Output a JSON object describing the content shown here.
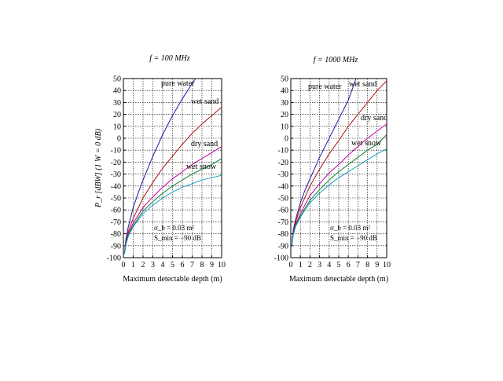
{
  "chart_data": [
    {
      "type": "line",
      "title": "f = 100 MHz",
      "xlabel": "Maximum detectable depth (m)",
      "ylabel": "P_r [dBW]   (1 W = 0 dB)",
      "xlim": [
        0,
        10
      ],
      "ylim": [
        -100,
        50
      ],
      "x_ticks": [
        0,
        1,
        2,
        3,
        4,
        5,
        6,
        7,
        8,
        9,
        10
      ],
      "y_ticks": [
        -100,
        -90,
        -80,
        -70,
        -60,
        -50,
        -40,
        -30,
        -20,
        -10,
        0,
        10,
        20,
        30,
        40,
        50
      ],
      "grid": true,
      "annotations": [
        "σ_b = 0.03 m²",
        "S_min = −90 dB"
      ],
      "series": [
        {
          "name": "pure water",
          "color": "#1a1aa0",
          "x": [
            0.1,
            0.25,
            0.5,
            1,
            1.5,
            2,
            3,
            4,
            5,
            6,
            7,
            7.8
          ],
          "y": [
            -96,
            -85,
            -74,
            -58,
            -46,
            -35,
            -15,
            3,
            19,
            33,
            46,
            55
          ]
        },
        {
          "name": "wet sand",
          "color": "#b01010",
          "x": [
            0.1,
            0.25,
            0.5,
            1,
            2,
            3,
            4,
            5,
            6,
            7,
            8,
            9,
            10
          ],
          "y": [
            -97,
            -87,
            -78,
            -67,
            -50,
            -37,
            -25,
            -15,
            -5,
            4,
            12,
            19,
            26
          ]
        },
        {
          "name": "dry sand",
          "color": "#c000a0",
          "x": [
            0.1,
            0.25,
            0.5,
            1,
            2,
            3,
            4,
            5,
            6,
            7,
            8,
            9,
            10
          ],
          "y": [
            -97,
            -88,
            -80,
            -71,
            -58,
            -49,
            -41,
            -34,
            -28,
            -22,
            -17,
            -12,
            -7
          ]
        },
        {
          "name": "wet snow",
          "color": "#108030",
          "x": [
            0.1,
            0.25,
            0.5,
            1,
            2,
            3,
            4,
            5,
            6,
            7,
            8,
            9,
            10
          ],
          "y": [
            -97,
            -89,
            -81,
            -73,
            -61,
            -53,
            -46,
            -40,
            -35,
            -30,
            -26,
            -22,
            -17
          ]
        },
        {
          "name": "",
          "color": "#10a0c0",
          "x": [
            0.1,
            0.25,
            0.5,
            1,
            2,
            3,
            4,
            5,
            6,
            7,
            8,
            9,
            10
          ],
          "y": [
            -97,
            -89,
            -82,
            -74,
            -63,
            -56,
            -50,
            -45,
            -41,
            -38,
            -35,
            -33,
            -31
          ]
        }
      ]
    },
    {
      "type": "line",
      "title": "f = 1000 MHz",
      "xlabel": "Maximum detectable depth (m)",
      "ylabel": "",
      "xlim": [
        0,
        10
      ],
      "ylim": [
        -100,
        50
      ],
      "x_ticks": [
        0,
        1,
        2,
        3,
        4,
        5,
        6,
        7,
        8,
        9,
        10
      ],
      "y_ticks": [
        -100,
        -90,
        -80,
        -70,
        -60,
        -50,
        -40,
        -30,
        -20,
        -10,
        0,
        10,
        20,
        30,
        40,
        50
      ],
      "grid": true,
      "annotations": [
        "σ_b = 0.03 m²",
        "S_min = −90 dB"
      ],
      "series": [
        {
          "name": "pure water",
          "color": "#1a1aa0",
          "x": [
            0.1,
            0.25,
            0.5,
            1,
            1.5,
            2,
            3,
            4,
            5,
            6,
            6.8
          ],
          "y": [
            -90,
            -77,
            -68,
            -54,
            -43,
            -34,
            -16,
            0,
            16,
            32,
            50
          ]
        },
        {
          "name": "wet sand",
          "color": "#b01010",
          "x": [
            0.1,
            0.25,
            0.5,
            1,
            2,
            3,
            4,
            5,
            6,
            7,
            8,
            9,
            10
          ],
          "y": [
            -90,
            -79,
            -70,
            -58,
            -40,
            -26,
            -13,
            -2,
            10,
            20,
            30,
            40,
            48
          ]
        },
        {
          "name": "dry sand",
          "color": "#c000a0",
          "x": [
            0.1,
            0.25,
            0.5,
            1,
            2,
            3,
            4,
            5,
            6,
            7,
            8,
            9,
            10
          ],
          "y": [
            -90,
            -80,
            -72,
            -63,
            -48,
            -38,
            -29,
            -22,
            -14,
            -7,
            0,
            6,
            12
          ]
        },
        {
          "name": "wet snow",
          "color": "#108030",
          "x": [
            0.1,
            0.25,
            0.5,
            1,
            2,
            3,
            4,
            5,
            6,
            7,
            8,
            9,
            10
          ],
          "y": [
            -90,
            -81,
            -73,
            -65,
            -52,
            -43,
            -35,
            -28,
            -22,
            -16,
            -10,
            -5,
            3
          ]
        },
        {
          "name": "",
          "color": "#10a0c0",
          "x": [
            0.1,
            0.25,
            0.5,
            1,
            2,
            3,
            4,
            5,
            6,
            7,
            8,
            9,
            10
          ],
          "y": [
            -90,
            -81,
            -74,
            -66,
            -54,
            -46,
            -39,
            -33,
            -28,
            -23,
            -18,
            -13,
            -9
          ]
        }
      ]
    }
  ]
}
